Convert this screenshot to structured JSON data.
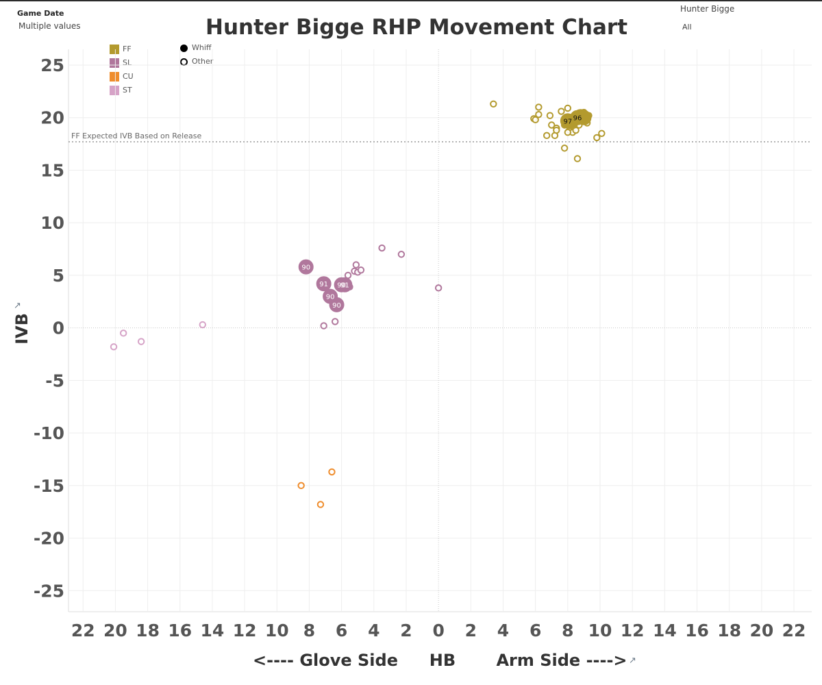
{
  "header": {
    "game_date_label": "Game Date",
    "game_date_value": "Multiple values",
    "pitcher_label": "Hunter Bigge",
    "pitcher_value": "All"
  },
  "legend": {
    "pitch_types": [
      {
        "label": "FF",
        "color": "#b39a2e"
      },
      {
        "label": "SL",
        "color": "#b0779c"
      },
      {
        "label": "CU",
        "color": "#ef8d2d"
      },
      {
        "label": "ST",
        "color": "#d6a3c7"
      }
    ],
    "outcomes": [
      {
        "label": "Whiff",
        "shape": "filled-circle"
      },
      {
        "label": "Other",
        "shape": "hollow-circle"
      }
    ]
  },
  "chart_data": {
    "type": "scatter",
    "title": "Hunter Bigge RHP Movement Chart",
    "xlabel_left": "<---- Glove Side",
    "xlabel": "HB",
    "xlabel_right": "Arm Side ---->",
    "ylabel": "IVB",
    "x_ticks": [
      "22",
      "20",
      "18",
      "16",
      "14",
      "12",
      "10",
      "8",
      "6",
      "4",
      "2",
      "0",
      "2",
      "4",
      "6",
      "8",
      "10",
      "12",
      "14",
      "16",
      "18",
      "20",
      "22"
    ],
    "x_tick_values": [
      -22,
      -20,
      -18,
      -16,
      -14,
      -12,
      -10,
      -8,
      -6,
      -4,
      -2,
      0,
      2,
      4,
      6,
      8,
      10,
      12,
      14,
      16,
      18,
      20,
      22
    ],
    "y_ticks": [
      "25",
      "20",
      "15",
      "10",
      "5",
      "0",
      "-5",
      "-10",
      "-15",
      "-20",
      "-25"
    ],
    "y_tick_values": [
      25,
      20,
      15,
      10,
      5,
      0,
      -5,
      -10,
      -15,
      -20,
      -25
    ],
    "xlim": [
      -22.9,
      23.1
    ],
    "ylim": [
      -27,
      26.5
    ],
    "grid": true,
    "reference_line": {
      "label": "FF Expected IVB Based on Release",
      "y": 17.7
    },
    "series": [
      {
        "name": "FF",
        "color": "#b39a2e",
        "other": [
          [
            3.4,
            21.3
          ],
          [
            6.2,
            21.0
          ],
          [
            6.2,
            20.3
          ],
          [
            5.9,
            19.9
          ],
          [
            6.0,
            19.8
          ],
          [
            6.9,
            20.2
          ],
          [
            7.6,
            20.6
          ],
          [
            8.0,
            20.9
          ],
          [
            7.0,
            19.3
          ],
          [
            7.3,
            19.0
          ],
          [
            7.8,
            19.3
          ],
          [
            8.2,
            19.8
          ],
          [
            8.0,
            20.0
          ],
          [
            8.4,
            19.6
          ],
          [
            8.1,
            18.8
          ],
          [
            8.3,
            18.6
          ],
          [
            8.5,
            18.8
          ],
          [
            8.7,
            19.3
          ],
          [
            9.0,
            20.5
          ],
          [
            9.3,
            20.2
          ],
          [
            9.2,
            19.5
          ],
          [
            6.7,
            18.3
          ],
          [
            7.2,
            18.3
          ],
          [
            8.0,
            18.6
          ],
          [
            9.8,
            18.1
          ],
          [
            10.1,
            18.5
          ],
          [
            7.8,
            17.1
          ],
          [
            8.6,
            16.1
          ],
          [
            7.3,
            18.8
          ],
          [
            8.4,
            19.3
          ],
          [
            8.9,
            19.9
          ]
        ],
        "whiff": [
          {
            "x": 8.0,
            "y": 19.7,
            "velo": "97"
          },
          {
            "x": 8.6,
            "y": 20.0,
            "velo": "96"
          },
          {
            "x": 8.2,
            "y": 19.6,
            "velo": ""
          },
          {
            "x": 8.8,
            "y": 20.1,
            "velo": ""
          },
          {
            "x": 9.0,
            "y": 20.0,
            "velo": ""
          }
        ]
      },
      {
        "name": "SL",
        "color": "#b0779c",
        "other": [
          [
            -3.5,
            7.6
          ],
          [
            -2.3,
            7.0
          ],
          [
            -5.1,
            6.0
          ],
          [
            -5.2,
            5.4
          ],
          [
            -5.0,
            5.3
          ],
          [
            -4.8,
            5.5
          ],
          [
            -5.6,
            5.0
          ],
          [
            -5.5,
            3.9
          ],
          [
            0.0,
            3.8
          ],
          [
            -7.1,
            0.2
          ],
          [
            -6.4,
            0.6
          ]
        ],
        "whiff": [
          {
            "x": -8.2,
            "y": 5.8,
            "velo": "90"
          },
          {
            "x": -7.1,
            "y": 4.2,
            "velo": "91"
          },
          {
            "x": -6.0,
            "y": 4.1,
            "velo": "90"
          },
          {
            "x": -5.8,
            "y": 4.1,
            "velo": "91"
          },
          {
            "x": -6.7,
            "y": 3.0,
            "velo": "90"
          },
          {
            "x": -6.3,
            "y": 2.2,
            "velo": "90"
          }
        ]
      },
      {
        "name": "CU",
        "color": "#ef8d2d",
        "other": [
          [
            -6.6,
            -13.7
          ],
          [
            -8.5,
            -15.0
          ],
          [
            -7.3,
            -16.8
          ]
        ],
        "whiff": []
      },
      {
        "name": "ST",
        "color": "#d6a3c7",
        "other": [
          [
            -19.5,
            -0.5
          ],
          [
            -20.1,
            -1.8
          ],
          [
            -18.4,
            -1.3
          ],
          [
            -14.6,
            0.3
          ]
        ],
        "whiff": []
      }
    ]
  }
}
